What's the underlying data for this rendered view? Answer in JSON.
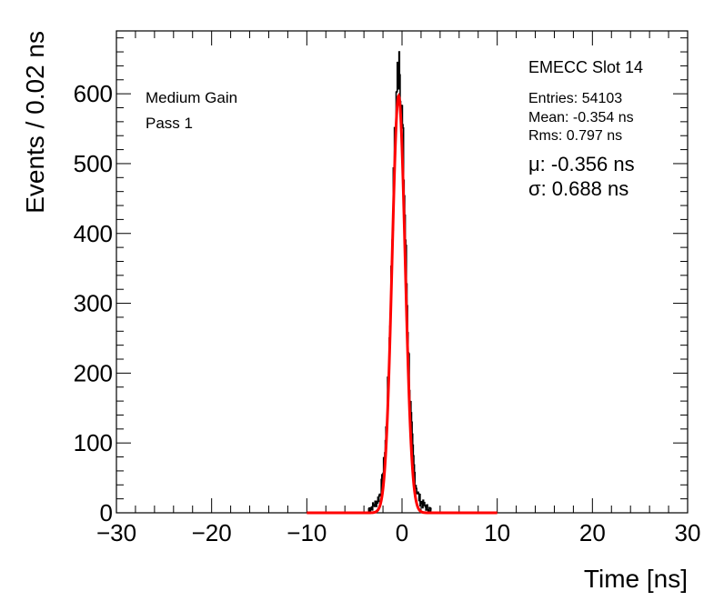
{
  "chart_data": {
    "type": "histogram",
    "xlabel": "Time [ns]",
    "ylabel": "Events / 0.02 ns",
    "xlim": [
      -30,
      30
    ],
    "ylim": [
      0,
      690
    ],
    "x_major_ticks": [
      -30,
      -20,
      -10,
      0,
      10,
      20,
      30
    ],
    "x_tick_labels": [
      "−30",
      "−20",
      "−10",
      "0",
      "10",
      "20",
      "30"
    ],
    "y_major_ticks": [
      0,
      100,
      200,
      300,
      400,
      500,
      600
    ],
    "y_tick_labels": [
      "0",
      "100",
      "200",
      "300",
      "400",
      "500",
      "600"
    ],
    "labels": [
      "Medium Gain",
      "Pass 1"
    ],
    "stats": {
      "title": "EMECC Slot 14",
      "entries": "Entries: 54103",
      "mean": "Mean: -0.354 ns",
      "rms": "Rms: 0.797 ns",
      "fit_mu": "μ: -0.356 ns",
      "fit_sigma": "σ: 0.688 ns"
    },
    "histogram": {
      "name": "data",
      "color": "#000000",
      "bin_width": 0.02,
      "peak_x": -0.3,
      "peak_value": 660,
      "support": [
        -3.5,
        3.0
      ]
    },
    "fit": {
      "name": "gaussian fit",
      "color": "#ff0000",
      "mu": -0.356,
      "sigma": 0.688,
      "amplitude": 597,
      "range": [
        -10,
        10
      ]
    }
  }
}
